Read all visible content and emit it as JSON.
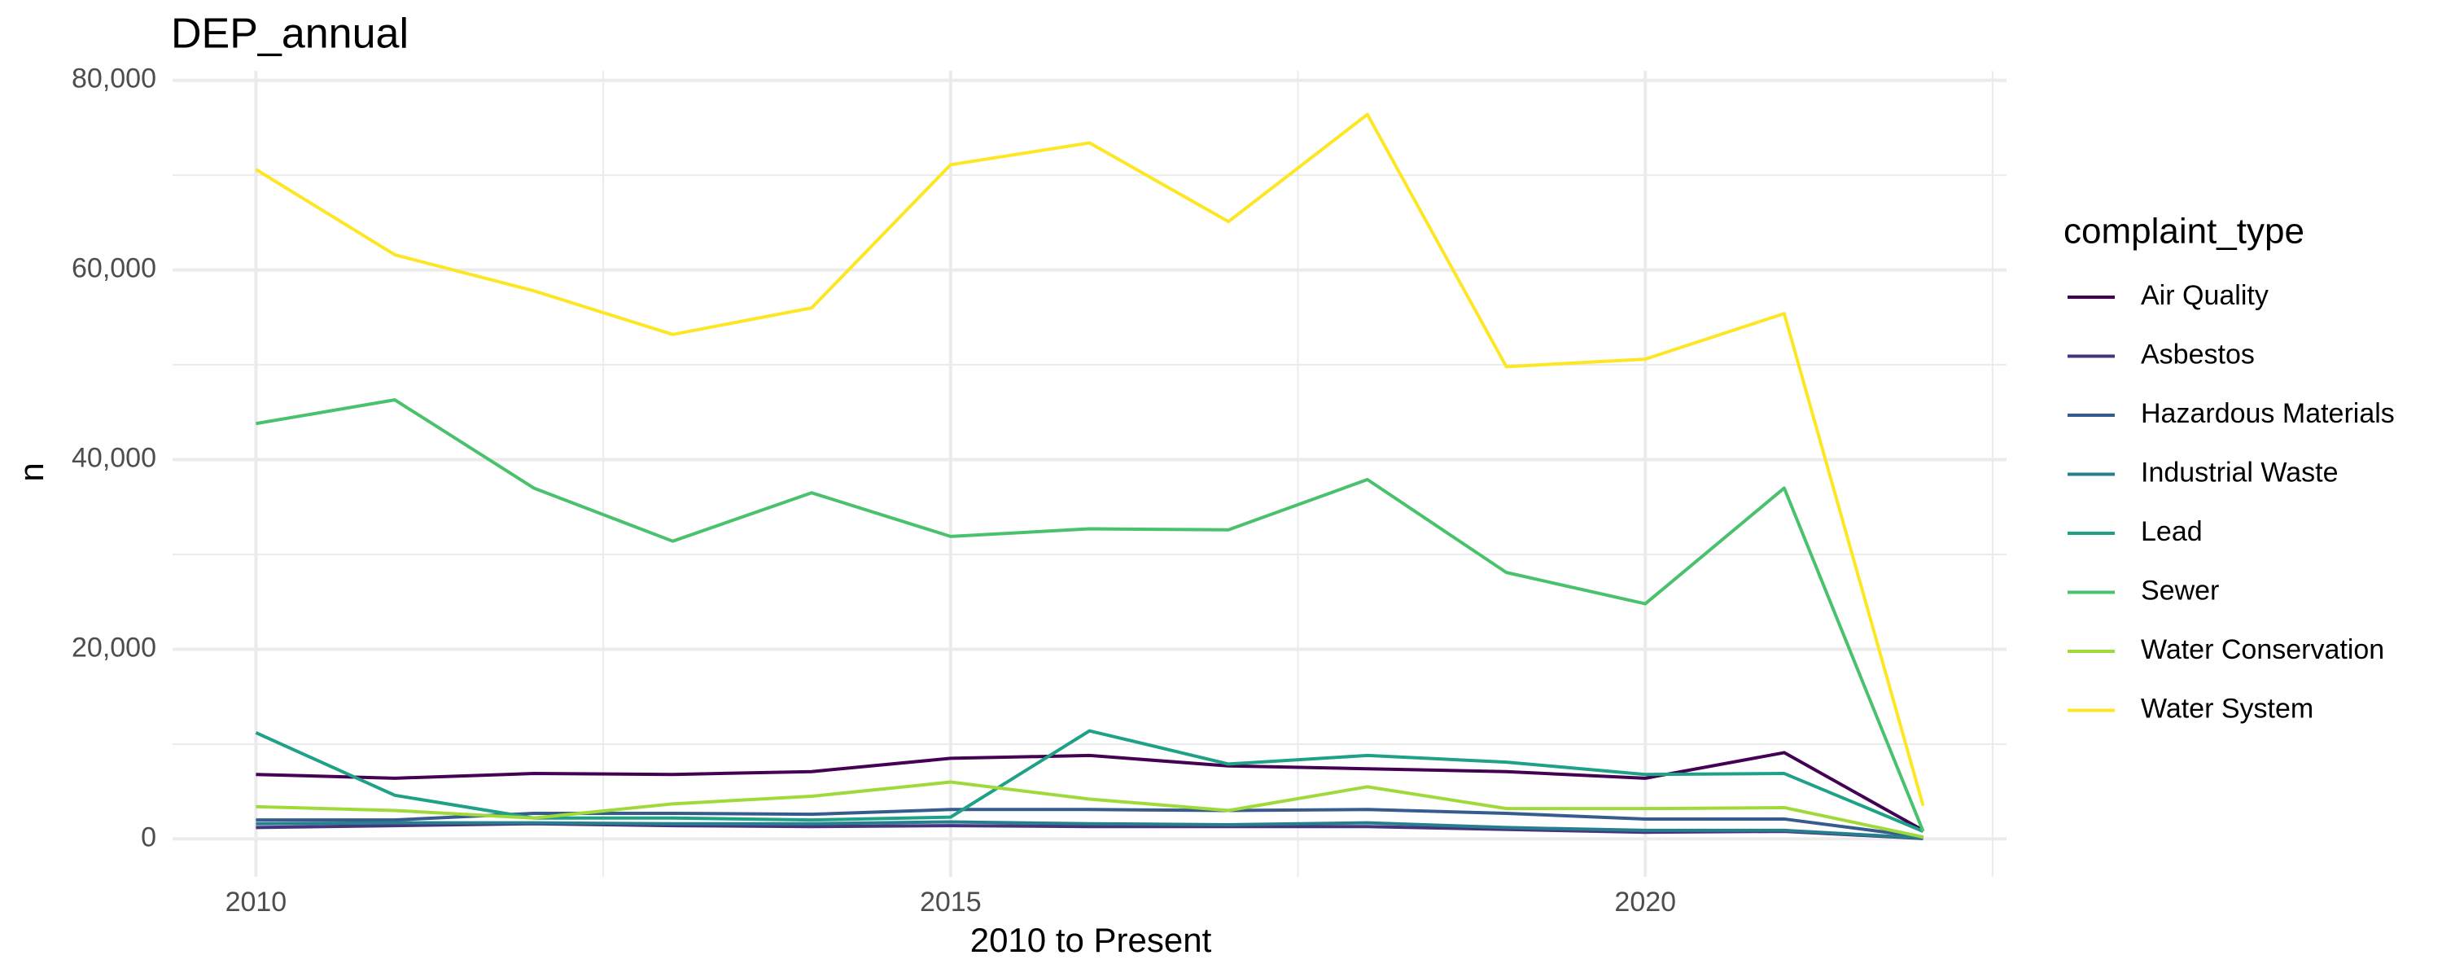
{
  "chart_data": {
    "type": "line",
    "title": "DEP_annual",
    "x_label": "2010 to Present",
    "y_label": "n",
    "legend_title": "complaint_type",
    "legend": "right",
    "grid": true,
    "minor_grid": true,
    "x": [
      2010,
      2011,
      2012,
      2013,
      2014,
      2015,
      2016,
      2017,
      2018,
      2019,
      2020,
      2021,
      2022
    ],
    "xlim": [
      2009.4,
      2022.6
    ],
    "xticks": [
      2010,
      2015,
      2020
    ],
    "ylim": [
      -4000,
      81000
    ],
    "yticks": [
      0,
      {
        "value": 20000,
        "label": "20,000"
      },
      {
        "value": 40000,
        "label": "40,000"
      },
      {
        "value": 60000,
        "label": "60,000"
      },
      {
        "value": 80000,
        "label": "80,000"
      }
    ],
    "series": [
      {
        "name": "Air Quality",
        "color": "#440154",
        "values": [
          6800,
          6400,
          6900,
          6800,
          7100,
          8500,
          8800,
          7700,
          7400,
          7100,
          6400,
          9100,
          900
        ]
      },
      {
        "name": "Asbestos",
        "color": "#46337E",
        "values": [
          1200,
          1400,
          1600,
          1400,
          1300,
          1400,
          1300,
          1300,
          1300,
          1000,
          700,
          800,
          50
        ]
      },
      {
        "name": "Hazardous Materials",
        "color": "#365C8D",
        "values": [
          2000,
          2000,
          2700,
          2700,
          2600,
          3100,
          3100,
          3000,
          3100,
          2700,
          2100,
          2100,
          200
        ]
      },
      {
        "name": "Industrial Waste",
        "color": "#277F8E",
        "values": [
          1600,
          1700,
          1700,
          1600,
          1600,
          1800,
          1600,
          1500,
          1700,
          1200,
          900,
          900,
          100
        ]
      },
      {
        "name": "Lead",
        "color": "#1FA187",
        "values": [
          11200,
          4600,
          2200,
          2200,
          2000,
          2300,
          11400,
          7900,
          8800,
          8100,
          6800,
          6900,
          800
        ]
      },
      {
        "name": "Sewer",
        "color": "#4AC16D",
        "values": [
          43800,
          46300,
          37000,
          31400,
          36500,
          31900,
          32700,
          32600,
          37900,
          28100,
          24800,
          37000,
          800
        ]
      },
      {
        "name": "Water Conservation",
        "color": "#9FDA3A",
        "values": [
          3400,
          3000,
          2200,
          3700,
          4500,
          6000,
          4200,
          3000,
          5500,
          3200,
          3200,
          3300,
          200
        ]
      },
      {
        "name": "Water System",
        "color": "#FDE725",
        "values": [
          70600,
          61600,
          57800,
          53200,
          56000,
          71100,
          73400,
          65100,
          76400,
          49800,
          50600,
          55400,
          3500
        ]
      }
    ]
  }
}
